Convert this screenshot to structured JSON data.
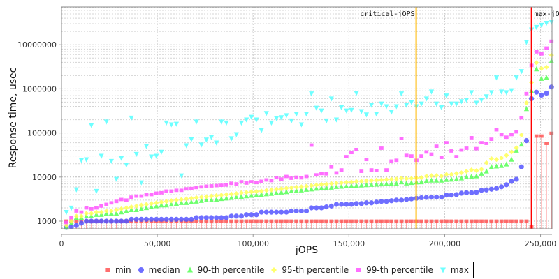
{
  "chart_data": {
    "type": "scatter",
    "title": "",
    "xlabel": "jOPS",
    "ylabel": "Response time, usec",
    "xlim": [
      0,
      256000
    ],
    "ylim": [
      670,
      72000000
    ],
    "yscale": "log",
    "grid": true,
    "legend_position": "bottom",
    "x_ticks": [
      {
        "value": 0,
        "label": "0"
      },
      {
        "value": 50000,
        "label": "50,000"
      },
      {
        "value": 100000,
        "label": "100,000"
      },
      {
        "value": 150000,
        "label": "150,000"
      },
      {
        "value": 200000,
        "label": "200,000"
      },
      {
        "value": 250000,
        "label": "250,000"
      }
    ],
    "y_ticks": [
      {
        "value": 1000,
        "label": "1000"
      },
      {
        "value": 10000,
        "label": "10000"
      },
      {
        "value": 100000,
        "label": "100000"
      },
      {
        "value": 1000000,
        "label": "1000000"
      },
      {
        "value": 10000000,
        "label": "10000000"
      }
    ],
    "annotations": [
      {
        "label": "critical-jOPS",
        "x": 185100,
        "color": "#ffb800"
      },
      {
        "label": "max-jOPS",
        "x": 245300,
        "color": "#ff0000"
      }
    ],
    "x": [
      2550,
      5160,
      7770,
      10380,
      12990,
      15600,
      18210,
      20820,
      23430,
      26040,
      28650,
      31260,
      33870,
      36480,
      39090,
      41700,
      44310,
      46920,
      49530,
      52140,
      54750,
      57360,
      59970,
      62580,
      65190,
      67800,
      70410,
      73020,
      75630,
      78240,
      80850,
      83460,
      86070,
      88680,
      91290,
      93900,
      96510,
      99120,
      101730,
      104340,
      106950,
      109560,
      112170,
      114780,
      117390,
      120000,
      122610,
      125220,
      127830,
      130440,
      133050,
      135660,
      138270,
      140880,
      143490,
      146100,
      148710,
      151320,
      153930,
      156540,
      159150,
      161760,
      164370,
      166980,
      169590,
      172200,
      174810,
      177420,
      180030,
      182640,
      185250,
      187860,
      190470,
      193080,
      195690,
      198300,
      200910,
      203520,
      206130,
      208740,
      211350,
      213960,
      216570,
      219180,
      221790,
      224400,
      227010,
      229620,
      232230,
      234840,
      237450,
      240060,
      242670,
      245280,
      247890,
      250500,
      253110,
      255720
    ],
    "series": [
      {
        "name": "min",
        "marker": "square",
        "color": "#ff5555",
        "values": [
          1000,
          1000,
          1000,
          1000,
          1000,
          1000,
          1000,
          1000,
          1000,
          1000,
          1000,
          1000,
          1000,
          1000,
          1000,
          1000,
          1000,
          1000,
          1000,
          1000,
          1000,
          1000,
          1000,
          1000,
          1000,
          1000,
          1000,
          1000,
          1000,
          1000,
          1000,
          1000,
          1000,
          1000,
          1000,
          1000,
          1000,
          1000,
          1000,
          1000,
          1000,
          1000,
          1000,
          1000,
          1000,
          1000,
          1000,
          1000,
          1000,
          1000,
          1000,
          1000,
          1000,
          1000,
          1000,
          1000,
          1000,
          1000,
          1000,
          1000,
          1000,
          1000,
          1000,
          1000,
          1000,
          1000,
          1000,
          1000,
          1000,
          1000,
          1000,
          1000,
          1000,
          1000,
          1000,
          1000,
          1000,
          1000,
          1000,
          1000,
          1000,
          1000,
          1000,
          1000,
          1000,
          1000,
          1000,
          1000,
          1000,
          1000,
          1000,
          1000,
          1000,
          740,
          85000,
          85000,
          58000,
          98000
        ]
      },
      {
        "name": "median",
        "marker": "circle",
        "color": "#5555ff",
        "values": [
          700,
          750,
          800,
          900,
          1000,
          1000,
          1000,
          1000,
          1000,
          1000,
          1000,
          1000,
          1000,
          1100,
          1100,
          1100,
          1100,
          1100,
          1100,
          1100,
          1100,
          1100,
          1100,
          1100,
          1100,
          1100,
          1200,
          1200,
          1200,
          1200,
          1200,
          1200,
          1200,
          1300,
          1300,
          1300,
          1400,
          1400,
          1400,
          1600,
          1600,
          1600,
          1600,
          1600,
          1600,
          1700,
          1700,
          1700,
          1700,
          2000,
          2000,
          2000,
          2100,
          2200,
          2400,
          2400,
          2400,
          2400,
          2500,
          2500,
          2600,
          2600,
          2700,
          2800,
          2800,
          2900,
          3000,
          3000,
          3100,
          3200,
          3300,
          3400,
          3450,
          3500,
          3500,
          3500,
          3900,
          3900,
          4000,
          4300,
          4400,
          4400,
          4500,
          5000,
          5100,
          5300,
          5500,
          6000,
          6700,
          8000,
          8900,
          17000,
          67000,
          600000,
          840000,
          720000,
          800000,
          1100000
        ]
      },
      {
        "name": "90-th percentile",
        "marker": "triangle-up",
        "color": "#55ff55",
        "values": [
          700,
          900,
          1200,
          1200,
          1300,
          1300,
          1400,
          1400,
          1500,
          1500,
          1500,
          1600,
          1700,
          1800,
          1800,
          1900,
          2000,
          2100,
          2200,
          2300,
          2300,
          2400,
          2500,
          2600,
          2600,
          2700,
          2800,
          2900,
          3000,
          3000,
          3100,
          3200,
          3300,
          3400,
          3500,
          3600,
          3700,
          3800,
          3900,
          4000,
          4100,
          4200,
          4400,
          4500,
          4600,
          4800,
          4900,
          5000,
          5200,
          5300,
          5500,
          5600,
          5700,
          5800,
          6000,
          6100,
          6200,
          6300,
          6400,
          6500,
          6600,
          6700,
          6800,
          6900,
          7000,
          7100,
          7100,
          7700,
          7200,
          7400,
          7600,
          7700,
          8300,
          8400,
          8400,
          8400,
          8700,
          8800,
          9000,
          9400,
          10000,
          10300,
          10500,
          12000,
          13500,
          17000,
          17500,
          18000,
          19500,
          25000,
          40000,
          55000,
          350000,
          900000,
          2800000,
          1700000,
          1800000,
          4300000
        ]
      },
      {
        "name": "95-th percentile",
        "marker": "diamond",
        "color": "#ffff55",
        "values": [
          800,
          1000,
          1300,
          1300,
          1500,
          1500,
          1600,
          1600,
          1700,
          1700,
          1800,
          1900,
          2000,
          2100,
          2200,
          2300,
          2400,
          2500,
          2600,
          2700,
          2800,
          2900,
          3000,
          3100,
          3200,
          3300,
          3400,
          3500,
          3600,
          3700,
          3800,
          3900,
          4000,
          4100,
          4200,
          4400,
          4500,
          4600,
          4700,
          4800,
          5000,
          5100,
          5300,
          5400,
          5600,
          5700,
          5900,
          6000,
          6200,
          6400,
          6600,
          6800,
          6900,
          7100,
          7300,
          7400,
          7600,
          7700,
          7900,
          8000,
          8200,
          8300,
          8500,
          8600,
          8800,
          8900,
          9000,
          9400,
          9200,
          9300,
          9500,
          9700,
          10500,
          10800,
          10800,
          10500,
          11500,
          11500,
          12000,
          12500,
          13500,
          14500,
          14000,
          15000,
          21000,
          26000,
          25000,
          27000,
          31000,
          37000,
          46000,
          90000,
          480000,
          1400000,
          3900000,
          2900000,
          3100000,
          5800000
        ]
      },
      {
        "name": "99-th percentile",
        "marker": "square",
        "color": "#ff55ff",
        "values": [
          930,
          1200,
          1700,
          1600,
          2000,
          1900,
          2000,
          2200,
          2400,
          2600,
          2800,
          3100,
          3000,
          3500,
          3700,
          3700,
          4000,
          4000,
          4300,
          4400,
          4800,
          4800,
          5000,
          5000,
          5400,
          5500,
          5800,
          6000,
          6200,
          6300,
          6400,
          6500,
          6600,
          7200,
          7000,
          7800,
          7300,
          7800,
          7500,
          8000,
          8600,
          8300,
          9700,
          9000,
          10300,
          9400,
          9900,
          9600,
          10300,
          53000,
          11200,
          12000,
          11800,
          17000,
          12400,
          14500,
          29000,
          36000,
          42000,
          13500,
          25000,
          14500,
          14000,
          45000,
          14500,
          23000,
          24000,
          75000,
          31000,
          30000,
          24000,
          30000,
          37000,
          33000,
          50000,
          28000,
          60000,
          39000,
          29000,
          41000,
          45000,
          78000,
          44000,
          60000,
          58000,
          72000,
          118000,
          92000,
          80000,
          92000,
          106000,
          220000,
          780000,
          3400000,
          6900000,
          6200000,
          8400000,
          12000000
        ]
      },
      {
        "name": "max",
        "marker": "triangle-down",
        "color": "#55ffff",
        "values": [
          1600,
          2000,
          5200,
          24000,
          25000,
          150000,
          4800,
          30000,
          180000,
          23000,
          9000,
          27000,
          19000,
          220000,
          33000,
          7500,
          50000,
          29000,
          30000,
          37000,
          170000,
          155000,
          160000,
          10800,
          52000,
          72000,
          180000,
          54000,
          70000,
          80000,
          60000,
          180000,
          170000,
          75000,
          93000,
          170000,
          200000,
          230000,
          200000,
          115000,
          280000,
          170000,
          215000,
          225000,
          250000,
          190000,
          270000,
          155000,
          270000,
          780000,
          370000,
          320000,
          190000,
          600000,
          200000,
          380000,
          320000,
          330000,
          800000,
          310000,
          260000,
          430000,
          270000,
          460000,
          400000,
          300000,
          400000,
          780000,
          430000,
          500000,
          400000,
          460000,
          600000,
          860000,
          460000,
          380000,
          700000,
          460000,
          460000,
          520000,
          560000,
          830000,
          480000,
          560000,
          670000,
          830000,
          1800000,
          860000,
          830000,
          920000,
          1800000,
          2500000,
          11500000,
          22000000,
          25000000,
          28000000,
          31000000,
          33000000
        ]
      }
    ]
  }
}
